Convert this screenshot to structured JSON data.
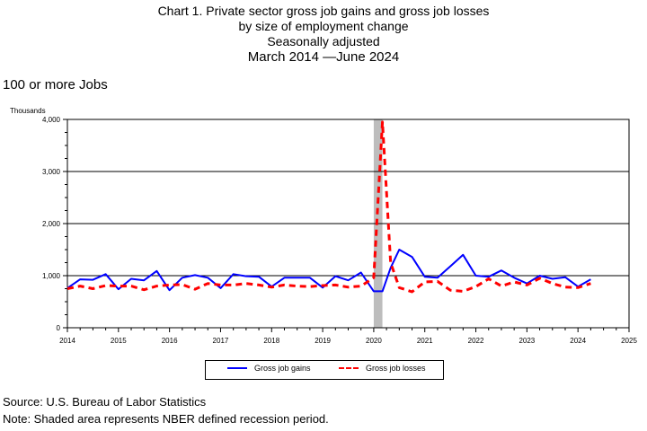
{
  "title_lines": [
    "Chart 1. Private sector gross job gains and gross job losses",
    "by size of employment change",
    "Seasonally adjusted",
    "March 2014 —June 2024"
  ],
  "subtitle": "100 or more Jobs",
  "footer": {
    "source": "Source: U.S. Bureau of Labor Statistics",
    "note": "Note: Shaded area represents NBER defined recession period."
  },
  "chart_data": {
    "type": "line",
    "ylabel": "Thousands",
    "ylim": [
      0,
      4000
    ],
    "yticks": [
      0,
      1000,
      2000,
      3000,
      4000
    ],
    "ytick_labels": [
      "0",
      "1,000",
      "2,000",
      "3,000",
      "4,000"
    ],
    "xlim": [
      2014,
      2025
    ],
    "xticks": [
      2014,
      2015,
      2016,
      2017,
      2018,
      2019,
      2020,
      2021,
      2022,
      2023,
      2024,
      2025
    ],
    "xtick_labels": [
      "2014",
      "2015",
      "2016",
      "2017",
      "2018",
      "2019",
      "2020",
      "2021",
      "2022",
      "2023",
      "2024",
      "2025"
    ],
    "grid": "horizontal",
    "legend_position": "bottom",
    "recession": [
      2020.0,
      2020.17
    ],
    "x": [
      2014.0,
      2014.25,
      2014.5,
      2014.75,
      2015.0,
      2015.25,
      2015.5,
      2015.75,
      2016.0,
      2016.25,
      2016.5,
      2016.75,
      2017.0,
      2017.25,
      2017.5,
      2017.75,
      2018.0,
      2018.25,
      2018.5,
      2018.75,
      2019.0,
      2019.25,
      2019.5,
      2019.75,
      2020.0,
      2020.17,
      2020.33,
      2020.5,
      2020.75,
      2021.0,
      2021.25,
      2021.5,
      2021.75,
      2022.0,
      2022.25,
      2022.5,
      2022.75,
      2023.0,
      2023.25,
      2023.5,
      2023.75,
      2024.0,
      2024.25
    ],
    "series": [
      {
        "name": "Gross job gains",
        "color": "#0000ff",
        "dash": "solid",
        "values": [
          760,
          930,
          920,
          1030,
          740,
          940,
          910,
          1090,
          720,
          960,
          1010,
          960,
          760,
          1030,
          990,
          980,
          790,
          960,
          960,
          960,
          770,
          990,
          910,
          1060,
          700,
          700,
          1150,
          1500,
          1360,
          980,
          960,
          1180,
          1400,
          1000,
          980,
          1100,
          960,
          850,
          1000,
          940,
          970,
          790,
          930
        ]
      },
      {
        "name": "Gross job losses",
        "color": "#ff0000",
        "dash": "dashed",
        "values": [
          750,
          800,
          750,
          810,
          800,
          800,
          730,
          800,
          820,
          830,
          740,
          850,
          820,
          820,
          850,
          820,
          780,
          820,
          800,
          790,
          810,
          820,
          780,
          800,
          960,
          3950,
          1250,
          770,
          690,
          880,
          890,
          720,
          700,
          790,
          940,
          800,
          880,
          820,
          950,
          850,
          780,
          770,
          850
        ]
      }
    ]
  }
}
